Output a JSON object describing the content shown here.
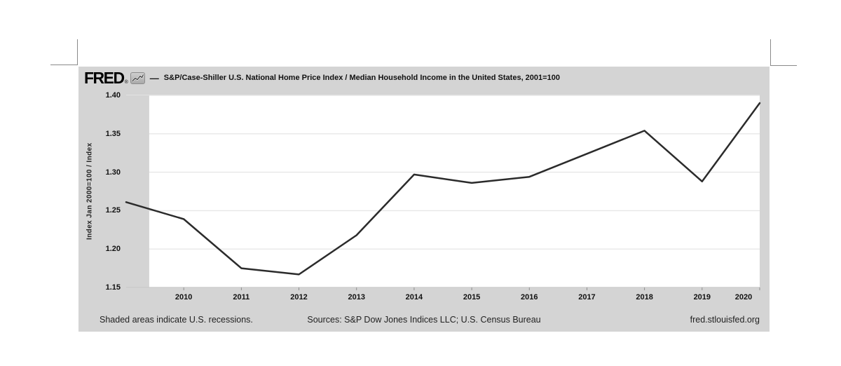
{
  "header": {
    "logo": "FRED",
    "registered_mark": "®",
    "dash": "—",
    "title": "S&P/Case-Shiller U.S. National Home Price Index / Median Household Income in the United States, 2001=100"
  },
  "footer": {
    "recession_note": "Shaded areas indicate U.S. recessions.",
    "sources": "Sources: S&P Dow Jones Indices LLC; U.S. Census Bureau",
    "site": "fred.stlouisfed.org"
  },
  "icons": {
    "fred_sparkline_icon": "sparkline chart glyph in FRED logo"
  },
  "colors": {
    "page_bg": "#ffffff",
    "chart_bg": "#d4d4d4",
    "plot_bg": "#ffffff",
    "gridline": "#e7e7e7",
    "axis_line": "#c2c2c2",
    "tick_mark": "#8f8f8f",
    "line": "#2b2b2b",
    "recession_band": "#d4d4d4",
    "text": "#111111",
    "crop_mark": "#8a8a8a"
  },
  "chart_data": {
    "type": "line",
    "title": "S&P/Case-Shiller U.S. National Home Price Index / Median Household Income in the United States, 2001=100",
    "xlabel": "",
    "ylabel": "Index Jan 2000=100 / Index",
    "x": [
      2009,
      2010,
      2011,
      2012,
      2013,
      2014,
      2015,
      2016,
      2017,
      2018,
      2019,
      2020
    ],
    "values": [
      1.261,
      1.239,
      1.175,
      1.167,
      1.218,
      1.297,
      1.286,
      1.294,
      1.324,
      1.354,
      1.288,
      1.39
    ],
    "xlim": [
      2009,
      2020
    ],
    "ylim": [
      1.15,
      1.4
    ],
    "xticks": [
      2010,
      2011,
      2012,
      2013,
      2014,
      2015,
      2016,
      2017,
      2018,
      2019,
      2020
    ],
    "xtick_labels": [
      "2010",
      "2011",
      "2012",
      "2013",
      "2014",
      "2015",
      "2016",
      "2017",
      "2018",
      "2019",
      "2020"
    ],
    "yticks": [
      1.15,
      1.2,
      1.25,
      1.3,
      1.35,
      1.4
    ],
    "ytick_labels": [
      "1.15",
      "1.20",
      "1.25",
      "1.30",
      "1.35",
      "1.40"
    ],
    "grid": "horizontal",
    "legend_position": "none",
    "recession_bands": [
      {
        "start": 2009.0,
        "end": 2009.4
      }
    ]
  }
}
